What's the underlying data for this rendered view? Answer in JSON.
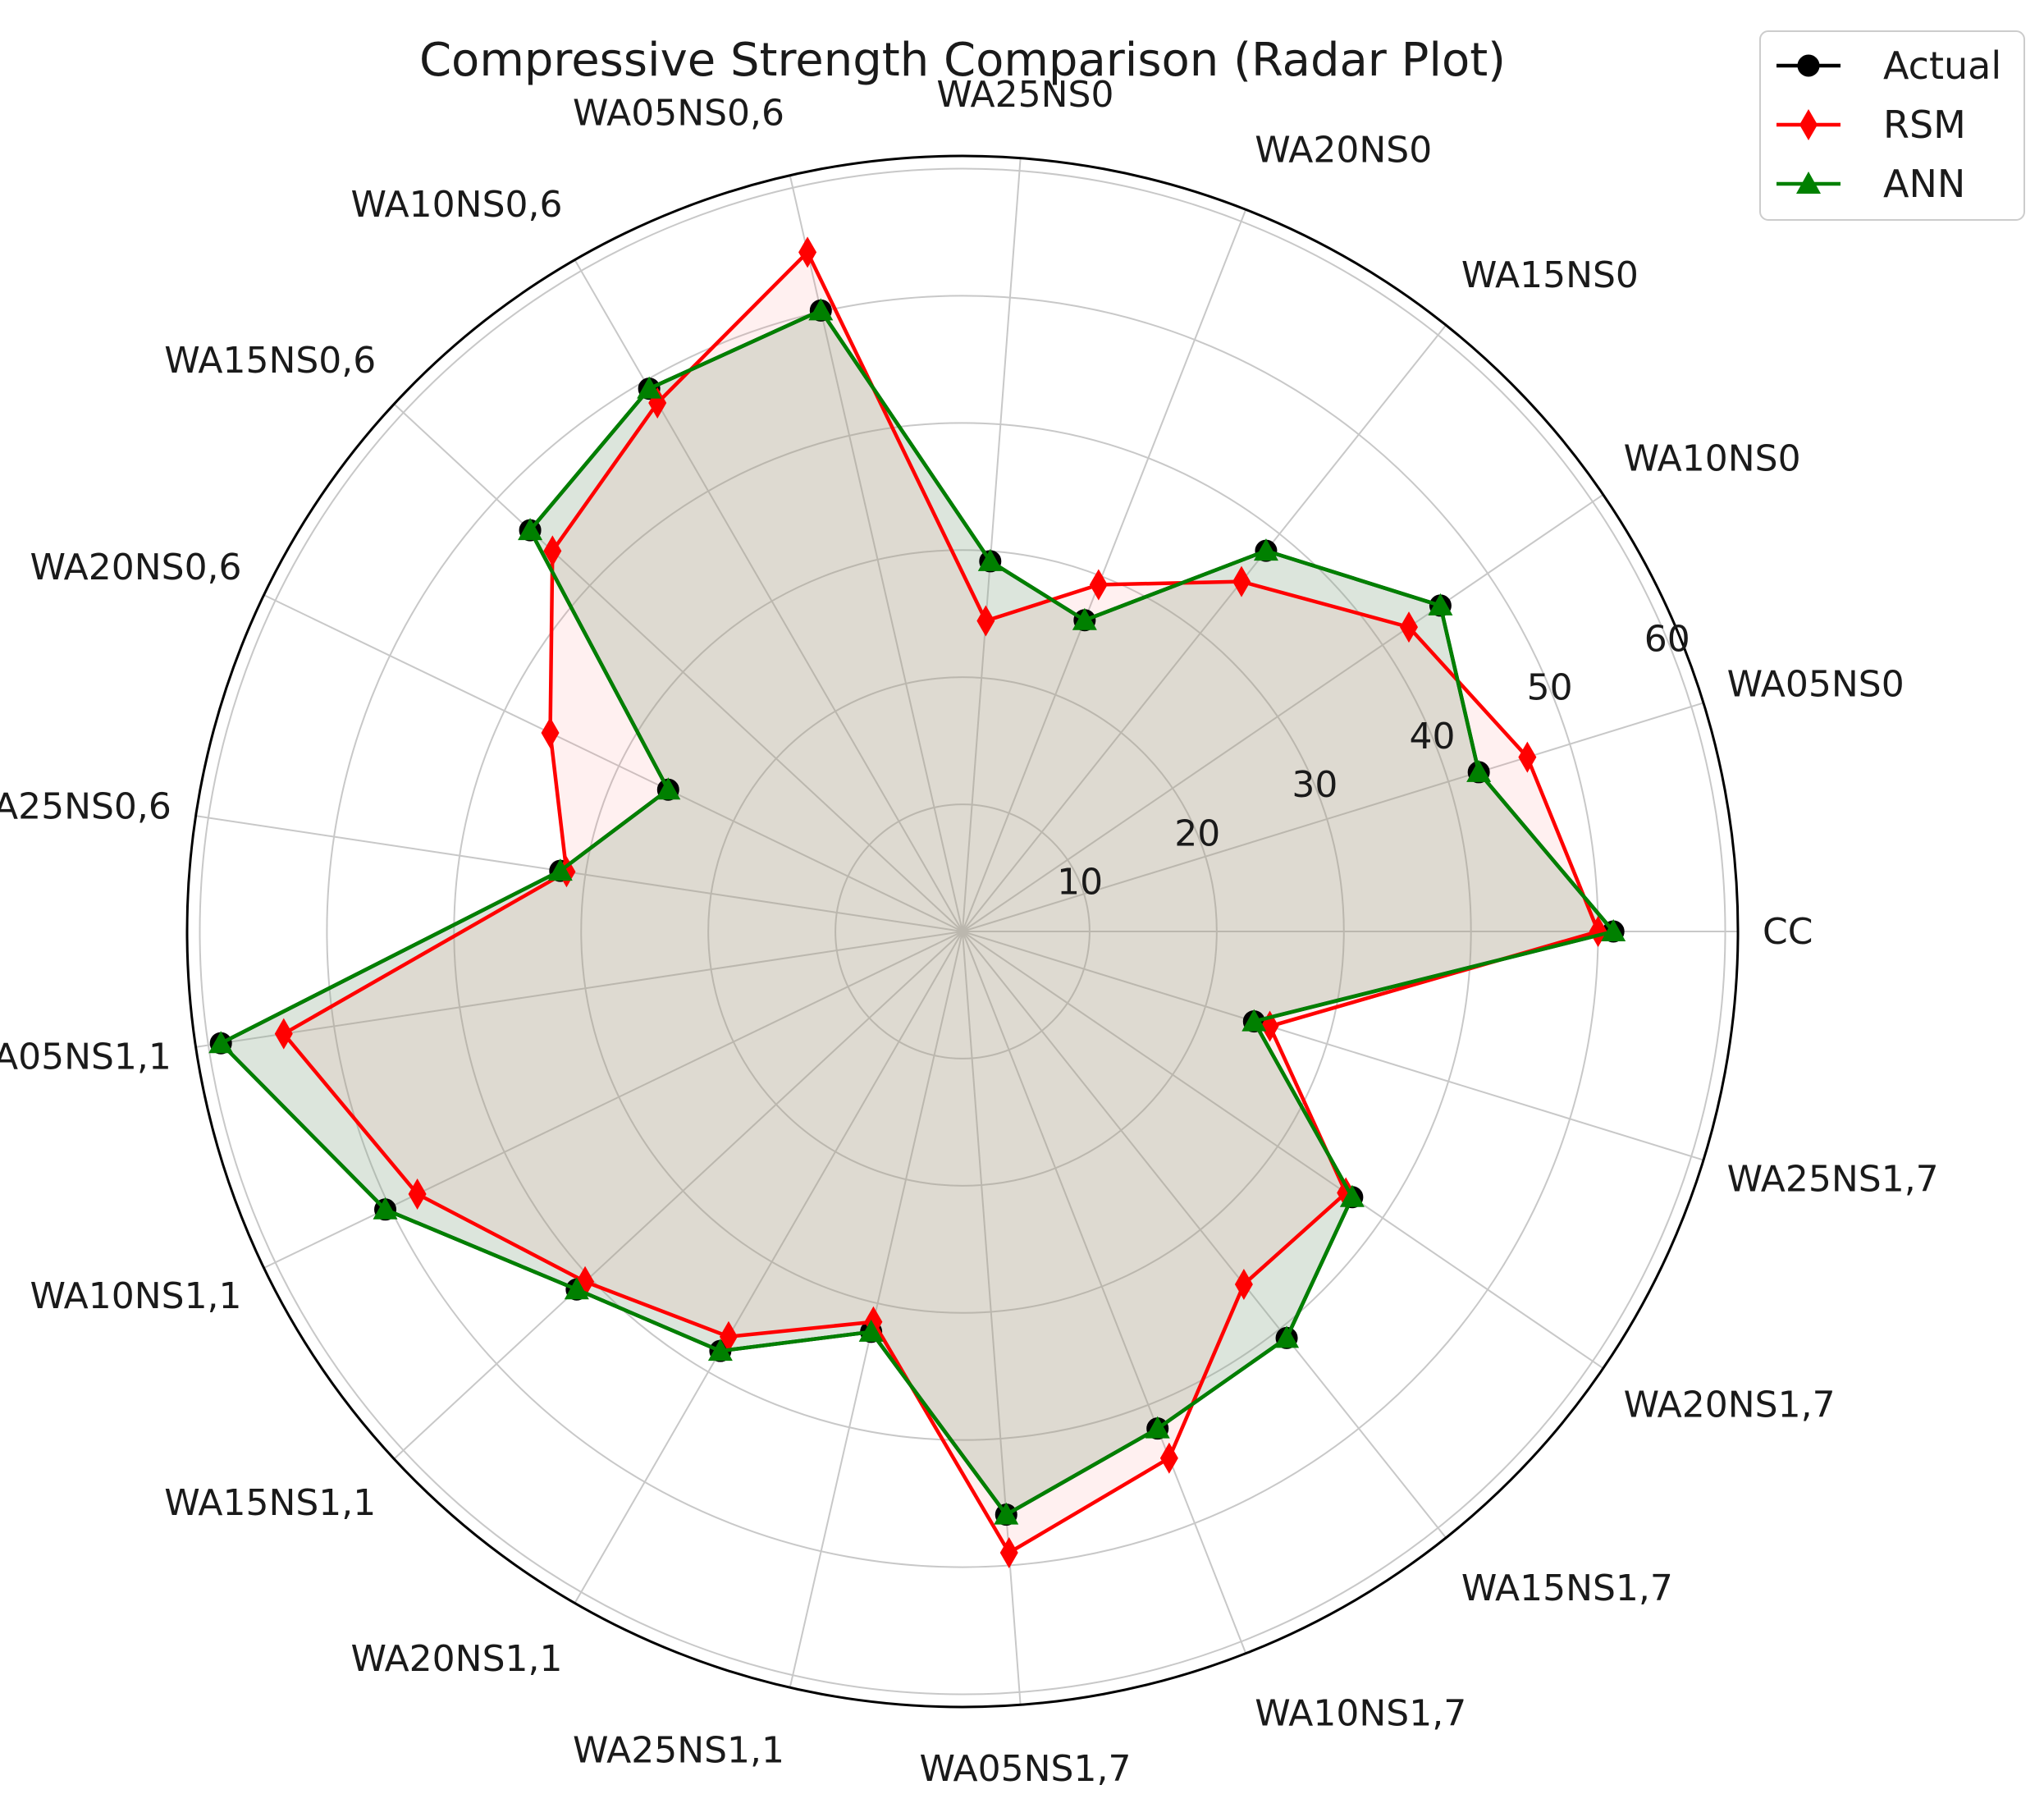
{
  "chart_data": {
    "type": "radar",
    "title": "Compressive Strength Comparison (Radar Plot)",
    "categories": [
      "CC",
      "WA05NS0",
      "WA10NS0",
      "WA15NS0",
      "WA20NS0",
      "WA25NS0",
      "WA05NS0,6",
      "WA10NS0,6",
      "WA15NS0,6",
      "WA20NS0,6",
      "WA25NS0,6",
      "WA05NS1,1",
      "WA10NS1,1",
      "WA15NS1,1",
      "WA20NS1,1",
      "WA25NS1,1",
      "WA05NS1,7",
      "WA10NS1,7",
      "WA15NS1,7",
      "WA20NS1,7",
      "WA25NS1,7"
    ],
    "radial_ticks": [
      10,
      20,
      30,
      40,
      50,
      60
    ],
    "rlim": [
      0,
      61
    ],
    "grid": true,
    "legend_position": "top-right",
    "series": [
      {
        "name": "Actual",
        "color": "#000000",
        "marker": "circle",
        "values": [
          51.2,
          42.5,
          45.5,
          38.3,
          26.3,
          29.2,
          50.1,
          49.3,
          46.4,
          25.7,
          32.0,
          59.0,
          50.4,
          41.4,
          38.1,
          32.3,
          46.0,
          42.0,
          40.9,
          37.1,
          24.0
        ]
      },
      {
        "name": "RSM",
        "color": "#ff0000",
        "marker": "diamond",
        "values": [
          50.0,
          46.5,
          42.5,
          35.2,
          29.3,
          24.5,
          54.8,
          48.0,
          44.0,
          36.0,
          31.5,
          54.0,
          47.6,
          40.5,
          36.8,
          31.5,
          49.0,
          44.5,
          35.5,
          36.5,
          25.3
        ]
      },
      {
        "name": "ANN",
        "color": "#008000",
        "marker": "triangle",
        "values": [
          51.2,
          42.5,
          45.5,
          38.3,
          26.3,
          29.2,
          50.1,
          49.3,
          46.4,
          25.7,
          32.0,
          59.0,
          50.4,
          41.4,
          38.1,
          32.3,
          46.0,
          42.0,
          40.9,
          37.1,
          24.0
        ]
      }
    ]
  }
}
